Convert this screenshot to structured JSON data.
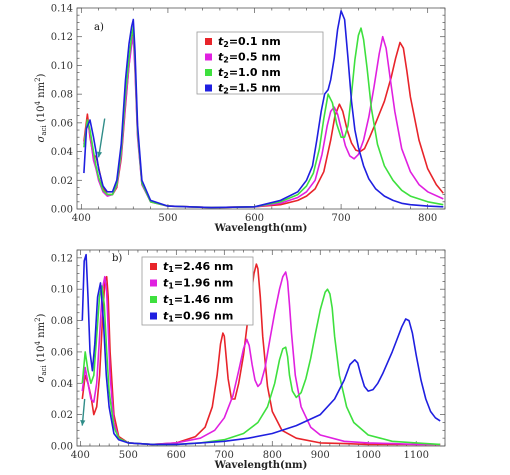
{
  "chart_data": [
    {
      "type": "line",
      "panel_label": "a)",
      "xlabel": "Wavelength(nm)",
      "ylabel": "σ_aci (10^4 nm^2)",
      "xlim": [
        395,
        820
      ],
      "ylim": [
        0,
        0.14
      ],
      "xticks": [
        400,
        500,
        600,
        700,
        800
      ],
      "yticks": [
        0.0,
        0.02,
        0.04,
        0.06,
        0.08,
        0.1,
        0.12,
        0.14
      ],
      "legend_position": "top-center",
      "grid": false,
      "series": [
        {
          "name": "t2=0.1 nm",
          "label_sub": "2",
          "label_rest": "=0.1 nm",
          "color": "#e8242a",
          "x": [
            403,
            407,
            410,
            414,
            417,
            420,
            425,
            430,
            436,
            441,
            446,
            451,
            455,
            458,
            460,
            462,
            465,
            470,
            480,
            500,
            550,
            600,
            630,
            650,
            660,
            670,
            680,
            688,
            693,
            698,
            702,
            707,
            712,
            717,
            722,
            727,
            733,
            740,
            750,
            758,
            763,
            768,
            772,
            776,
            780,
            790,
            800,
            810,
            818
          ],
          "y": [
            0.047,
            0.066,
            0.05,
            0.036,
            0.037,
            0.029,
            0.015,
            0.01,
            0.01,
            0.015,
            0.035,
            0.072,
            0.1,
            0.118,
            0.125,
            0.1,
            0.052,
            0.018,
            0.005,
            0.002,
            0.001,
            0.0015,
            0.003,
            0.006,
            0.009,
            0.014,
            0.026,
            0.048,
            0.065,
            0.073,
            0.068,
            0.055,
            0.046,
            0.041,
            0.04,
            0.042,
            0.05,
            0.06,
            0.075,
            0.092,
            0.105,
            0.116,
            0.112,
            0.096,
            0.078,
            0.048,
            0.028,
            0.017,
            0.011
          ]
        },
        {
          "name": "t2=0.5 nm",
          "label_sub": "2",
          "label_rest": "=0.5 nm",
          "color": "#e020e0",
          "x": [
            403,
            407,
            410,
            414,
            417,
            420,
            425,
            430,
            436,
            441,
            446,
            451,
            455,
            458,
            460,
            462,
            465,
            470,
            480,
            500,
            550,
            600,
            630,
            650,
            660,
            670,
            678,
            684,
            688,
            692,
            696,
            700,
            705,
            710,
            715,
            720,
            726,
            732,
            738,
            744,
            748,
            752,
            757,
            762,
            770,
            780,
            790,
            800,
            818
          ],
          "y": [
            0.045,
            0.062,
            0.052,
            0.034,
            0.028,
            0.02,
            0.012,
            0.009,
            0.01,
            0.016,
            0.037,
            0.074,
            0.1,
            0.114,
            0.12,
            0.096,
            0.05,
            0.017,
            0.005,
            0.002,
            0.001,
            0.0015,
            0.004,
            0.008,
            0.012,
            0.02,
            0.038,
            0.058,
            0.068,
            0.071,
            0.066,
            0.056,
            0.044,
            0.037,
            0.035,
            0.038,
            0.048,
            0.064,
            0.085,
            0.108,
            0.12,
            0.112,
            0.09,
            0.068,
            0.042,
            0.026,
            0.017,
            0.012,
            0.007
          ]
        },
        {
          "name": "t2=1.0 nm",
          "label_sub": "2",
          "label_rest": "=1.0 nm",
          "color": "#3ee03e",
          "x": [
            403,
            407,
            410,
            414,
            417,
            420,
            425,
            430,
            436,
            441,
            446,
            451,
            455,
            458,
            460,
            462,
            465,
            470,
            480,
            500,
            550,
            600,
            630,
            650,
            660,
            668,
            675,
            680,
            685,
            690,
            695,
            700,
            704,
            708,
            712,
            716,
            720,
            723,
            726,
            730,
            735,
            742,
            750,
            760,
            770,
            780,
            800,
            818
          ],
          "y": [
            0.043,
            0.062,
            0.055,
            0.04,
            0.03,
            0.022,
            0.013,
            0.01,
            0.01,
            0.017,
            0.04,
            0.08,
            0.105,
            0.12,
            0.127,
            0.104,
            0.054,
            0.018,
            0.005,
            0.002,
            0.001,
            0.0015,
            0.005,
            0.01,
            0.016,
            0.025,
            0.042,
            0.063,
            0.08,
            0.074,
            0.059,
            0.05,
            0.05,
            0.058,
            0.08,
            0.104,
            0.121,
            0.126,
            0.118,
            0.098,
            0.07,
            0.045,
            0.03,
            0.02,
            0.013,
            0.009,
            0.005,
            0.003
          ]
        },
        {
          "name": "t2=1.5 nm",
          "label_sub": "2",
          "label_rest": "=1.5 nm",
          "color": "#1f1fe0",
          "x": [
            403,
            406,
            410,
            414,
            417,
            420,
            425,
            430,
            436,
            441,
            446,
            451,
            455,
            458,
            460,
            462,
            465,
            470,
            480,
            500,
            550,
            600,
            630,
            650,
            660,
            667,
            672,
            677,
            681,
            685,
            688,
            692,
            696,
            700,
            704,
            708,
            712,
            716,
            720,
            726,
            732,
            740,
            750,
            760,
            770,
            780,
            800,
            818
          ],
          "y": [
            0.025,
            0.056,
            0.062,
            0.05,
            0.04,
            0.028,
            0.016,
            0.012,
            0.012,
            0.02,
            0.045,
            0.09,
            0.115,
            0.127,
            0.132,
            0.11,
            0.058,
            0.02,
            0.006,
            0.002,
            0.001,
            0.0015,
            0.006,
            0.012,
            0.02,
            0.03,
            0.048,
            0.068,
            0.08,
            0.083,
            0.09,
            0.105,
            0.125,
            0.138,
            0.132,
            0.105,
            0.075,
            0.055,
            0.043,
            0.03,
            0.021,
            0.014,
            0.009,
            0.006,
            0.004,
            0.003,
            0.002,
            0.0015
          ]
        }
      ]
    },
    {
      "type": "line",
      "panel_label": "b)",
      "xlabel": "Wavelength(nm)",
      "ylabel": "σ_aci (10^4 nm^2)",
      "xlim": [
        393,
        1160
      ],
      "ylim": [
        0,
        0.125
      ],
      "xticks": [
        400,
        500,
        600,
        700,
        800,
        900,
        1000,
        1100
      ],
      "yticks": [
        0.0,
        0.02,
        0.04,
        0.06,
        0.08,
        0.1,
        0.12
      ],
      "legend_position": "top-center",
      "grid": false,
      "series": [
        {
          "name": "t1=2.46 nm",
          "label_sub": "1",
          "label_rest": "=2.46 nm",
          "color": "#e8242a",
          "x": [
            404,
            410,
            416,
            422,
            428,
            434,
            440,
            446,
            451,
            455,
            458,
            462,
            470,
            480,
            500,
            550,
            600,
            640,
            660,
            675,
            685,
            692,
            697,
            700,
            703,
            708,
            715,
            722,
            730,
            740,
            748,
            755,
            762,
            767,
            770,
            775,
            780,
            790,
            800,
            820,
            850,
            900,
            950,
            1000,
            1050,
            1100,
            1150
          ],
          "y": [
            0.03,
            0.045,
            0.04,
            0.032,
            0.02,
            0.025,
            0.045,
            0.08,
            0.105,
            0.108,
            0.095,
            0.06,
            0.02,
            0.006,
            0.002,
            0.001,
            0.002,
            0.006,
            0.012,
            0.025,
            0.045,
            0.065,
            0.072,
            0.07,
            0.06,
            0.043,
            0.03,
            0.03,
            0.04,
            0.058,
            0.078,
            0.095,
            0.11,
            0.116,
            0.113,
            0.095,
            0.07,
            0.038,
            0.022,
            0.01,
            0.005,
            0.002,
            0.0015,
            0.001,
            0.001,
            0.001,
            0.001
          ]
        },
        {
          "name": "t1=1.96 nm",
          "label_sub": "1",
          "label_rest": "=1.96 nm",
          "color": "#e020e0",
          "x": [
            404,
            410,
            416,
            422,
            428,
            434,
            440,
            446,
            451,
            455,
            458,
            462,
            470,
            480,
            500,
            550,
            600,
            650,
            680,
            700,
            718,
            730,
            740,
            747,
            752,
            758,
            764,
            770,
            776,
            785,
            795,
            805,
            815,
            822,
            828,
            832,
            836,
            840,
            848,
            860,
            880,
            900,
            950,
            1000,
            1050,
            1100,
            1150
          ],
          "y": [
            0.035,
            0.05,
            0.04,
            0.03,
            0.028,
            0.04,
            0.07,
            0.1,
            0.108,
            0.098,
            0.075,
            0.045,
            0.015,
            0.005,
            0.002,
            0.001,
            0.002,
            0.005,
            0.01,
            0.018,
            0.032,
            0.048,
            0.062,
            0.068,
            0.064,
            0.052,
            0.042,
            0.038,
            0.04,
            0.05,
            0.068,
            0.085,
            0.1,
            0.108,
            0.111,
            0.105,
            0.09,
            0.072,
            0.045,
            0.025,
            0.012,
            0.007,
            0.003,
            0.002,
            0.0015,
            0.001,
            0.001
          ]
        },
        {
          "name": "t1=1.46 nm",
          "label_sub": "1",
          "label_rest": "=1.46 nm",
          "color": "#3ee03e",
          "x": [
            404,
            410,
            416,
            422,
            428,
            434,
            440,
            445,
            450,
            455,
            460,
            470,
            480,
            500,
            550,
            600,
            650,
            700,
            740,
            770,
            790,
            805,
            815,
            822,
            828,
            832,
            836,
            842,
            850,
            860,
            870,
            880,
            890,
            900,
            910,
            915,
            920,
            925,
            930,
            940,
            955,
            970,
            1000,
            1050,
            1100,
            1150
          ],
          "y": [
            0.04,
            0.06,
            0.048,
            0.04,
            0.045,
            0.07,
            0.096,
            0.102,
            0.09,
            0.06,
            0.035,
            0.012,
            0.005,
            0.002,
            0.001,
            0.001,
            0.002,
            0.004,
            0.008,
            0.015,
            0.025,
            0.04,
            0.055,
            0.062,
            0.063,
            0.057,
            0.045,
            0.035,
            0.031,
            0.034,
            0.043,
            0.056,
            0.072,
            0.087,
            0.098,
            0.1,
            0.097,
            0.088,
            0.07,
            0.045,
            0.025,
            0.015,
            0.007,
            0.003,
            0.002,
            0.001
          ]
        },
        {
          "name": "t1=0.96 nm",
          "label_sub": "1",
          "label_rest": "=0.96 nm",
          "color": "#1f1fe0",
          "x": [
            404,
            408,
            412,
            416,
            420,
            425,
            430,
            436,
            442,
            448,
            454,
            460,
            470,
            480,
            500,
            550,
            600,
            650,
            700,
            750,
            800,
            850,
            900,
            930,
            950,
            962,
            972,
            978,
            984,
            992,
            1000,
            1010,
            1020,
            1030,
            1040,
            1050,
            1060,
            1070,
            1078,
            1085,
            1092,
            1100,
            1110,
            1120,
            1130,
            1140,
            1150
          ],
          "y": [
            0.08,
            0.118,
            0.122,
            0.095,
            0.06,
            0.048,
            0.065,
            0.095,
            0.104,
            0.08,
            0.045,
            0.025,
            0.008,
            0.004,
            0.002,
            0.001,
            0.001,
            0.002,
            0.003,
            0.005,
            0.008,
            0.013,
            0.02,
            0.03,
            0.042,
            0.052,
            0.055,
            0.053,
            0.046,
            0.038,
            0.035,
            0.036,
            0.04,
            0.046,
            0.053,
            0.06,
            0.068,
            0.076,
            0.081,
            0.08,
            0.072,
            0.058,
            0.042,
            0.03,
            0.022,
            0.018,
            0.016
          ]
        }
      ]
    }
  ]
}
